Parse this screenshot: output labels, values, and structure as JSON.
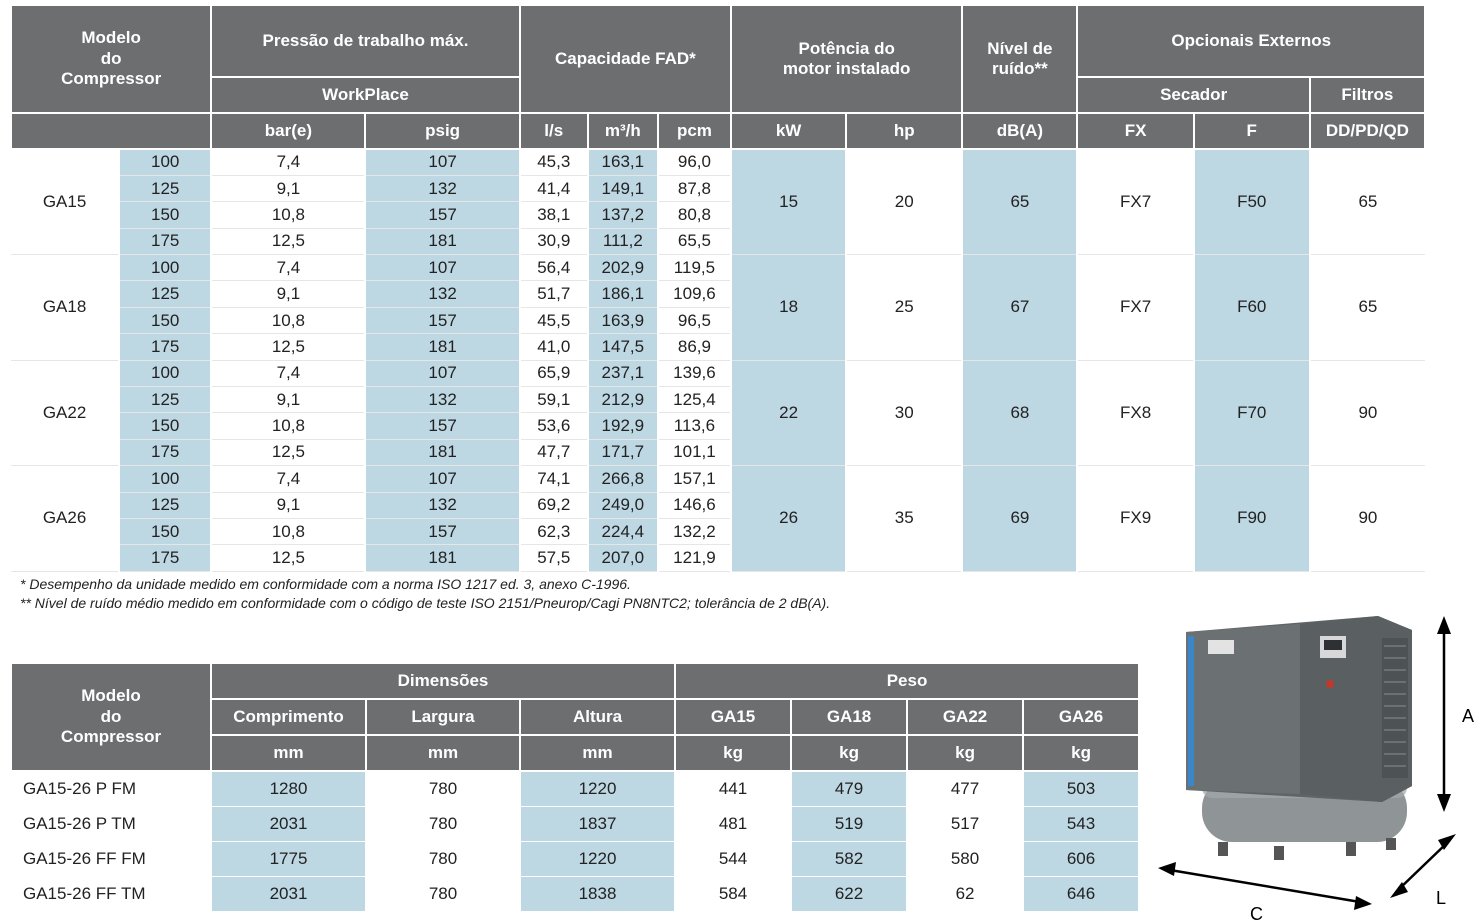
{
  "table1": {
    "headers": {
      "model": "Modelo\ndo\nCompressor",
      "pressure": "Pressão de trabalho máx.",
      "workplace": "WorkPlace",
      "bar": "bar(e)",
      "psig": "psig",
      "fad": "Capacidade FAD*",
      "ls": "l/s",
      "m3h": "m³/h",
      "pcm": "pcm",
      "power": "Potência do\nmotor instalado",
      "kw": "kW",
      "hp": "hp",
      "noise": "Nível de\nruído**",
      "dba": "dB(A)",
      "options": "Opcionais Externos",
      "dryer": "Secador",
      "filters": "Filtros",
      "fx": "FX",
      "f": "F",
      "ddpdqd": "DD/PD/QD"
    },
    "groups": [
      {
        "model": "GA15",
        "kw": "15",
        "hp": "20",
        "dba": "65",
        "fx": "FX7",
        "f": "F50",
        "filter": "65",
        "rows": [
          {
            "variant": "100",
            "bar": "7,4",
            "psig": "107",
            "ls": "45,3",
            "m3h": "163,1",
            "pcm": "96,0"
          },
          {
            "variant": "125",
            "bar": "9,1",
            "psig": "132",
            "ls": "41,4",
            "m3h": "149,1",
            "pcm": "87,8"
          },
          {
            "variant": "150",
            "bar": "10,8",
            "psig": "157",
            "ls": "38,1",
            "m3h": "137,2",
            "pcm": "80,8"
          },
          {
            "variant": "175",
            "bar": "12,5",
            "psig": "181",
            "ls": "30,9",
            "m3h": "111,2",
            "pcm": "65,5"
          }
        ]
      },
      {
        "model": "GA18",
        "kw": "18",
        "hp": "25",
        "dba": "67",
        "fx": "FX7",
        "f": "F60",
        "filter": "65",
        "rows": [
          {
            "variant": "100",
            "bar": "7,4",
            "psig": "107",
            "ls": "56,4",
            "m3h": "202,9",
            "pcm": "119,5"
          },
          {
            "variant": "125",
            "bar": "9,1",
            "psig": "132",
            "ls": "51,7",
            "m3h": "186,1",
            "pcm": "109,6"
          },
          {
            "variant": "150",
            "bar": "10,8",
            "psig": "157",
            "ls": "45,5",
            "m3h": "163,9",
            "pcm": "96,5"
          },
          {
            "variant": "175",
            "bar": "12,5",
            "psig": "181",
            "ls": "41,0",
            "m3h": "147,5",
            "pcm": "86,9"
          }
        ]
      },
      {
        "model": "GA22",
        "kw": "22",
        "hp": "30",
        "dba": "68",
        "fx": "FX8",
        "f": "F70",
        "filter": "90",
        "rows": [
          {
            "variant": "100",
            "bar": "7,4",
            "psig": "107",
            "ls": "65,9",
            "m3h": "237,1",
            "pcm": "139,6"
          },
          {
            "variant": "125",
            "bar": "9,1",
            "psig": "132",
            "ls": "59,1",
            "m3h": "212,9",
            "pcm": "125,4"
          },
          {
            "variant": "150",
            "bar": "10,8",
            "psig": "157",
            "ls": "53,6",
            "m3h": "192,9",
            "pcm": "113,6"
          },
          {
            "variant": "175",
            "bar": "12,5",
            "psig": "181",
            "ls": "47,7",
            "m3h": "171,7",
            "pcm": "101,1"
          }
        ]
      },
      {
        "model": "GA26",
        "kw": "26",
        "hp": "35",
        "dba": "69",
        "fx": "FX9",
        "f": "F90",
        "filter": "90",
        "rows": [
          {
            "variant": "100",
            "bar": "7,4",
            "psig": "107",
            "ls": "74,1",
            "m3h": "266,8",
            "pcm": "157,1"
          },
          {
            "variant": "125",
            "bar": "9,1",
            "psig": "132",
            "ls": "69,2",
            "m3h": "249,0",
            "pcm": "146,6"
          },
          {
            "variant": "150",
            "bar": "10,8",
            "psig": "157",
            "ls": "62,3",
            "m3h": "224,4",
            "pcm": "132,2"
          },
          {
            "variant": "175",
            "bar": "12,5",
            "psig": "181",
            "ls": "57,5",
            "m3h": "207,0",
            "pcm": "121,9"
          }
        ]
      }
    ]
  },
  "notes": {
    "note1": "* Desempenho da unidade medido em conformidade com a norma ISO 1217 ed. 3, anexo C-1996.",
    "note2": "** Nível de ruído médio medido em conformidade com o código de teste ISO 2151/Pneurop/Cagi PN8NTC2; tolerância de 2 dB(A)."
  },
  "table2": {
    "headers": {
      "model": "Modelo\ndo\nCompressor",
      "dimensions": "Dimensões",
      "weight": "Peso",
      "length": "Comprimento",
      "width": "Largura",
      "height": "Altura",
      "mm": "mm",
      "kg": "kg",
      "ga15": "GA15",
      "ga18": "GA18",
      "ga22": "GA22",
      "ga26": "GA26"
    },
    "rows": [
      {
        "model": "GA15-26 P FM",
        "length": "1280",
        "width": "780",
        "height": "1220",
        "ga15": "441",
        "ga18": "479",
        "ga22": "477",
        "ga26": "503"
      },
      {
        "model": "GA15-26 P TM",
        "length": "2031",
        "width": "780",
        "height": "1837",
        "ga15": "481",
        "ga18": "519",
        "ga22": "517",
        "ga26": "543"
      },
      {
        "model": "GA15-26 FF FM",
        "length": "1775",
        "width": "780",
        "height": "1220",
        "ga15": "544",
        "ga18": "582",
        "ga22": "580",
        "ga26": "606"
      },
      {
        "model": "GA15-26 FF TM",
        "length": "2031",
        "width": "780",
        "height": "1838",
        "ga15": "584",
        "ga18": "622",
        "ga22": "62",
        "ga26": "646"
      }
    ]
  },
  "image": {
    "dim_a": "A",
    "dim_c": "C",
    "dim_l": "L",
    "colors": {
      "body": "#6b7072",
      "tank": "#8a8f91",
      "stripe": "#3a86c8"
    }
  },
  "colors": {
    "header": "#6d6e70",
    "blue": "#bdd7e3"
  }
}
